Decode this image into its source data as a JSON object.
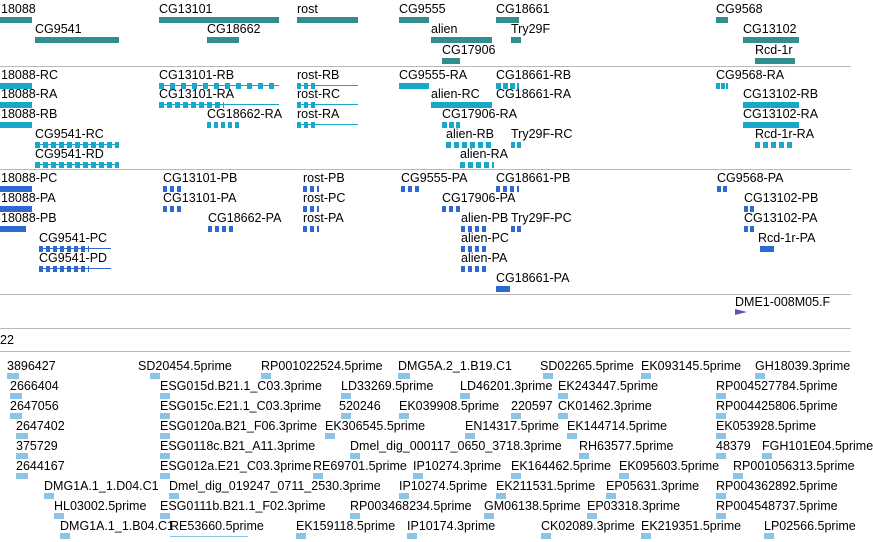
{
  "colors": {
    "gene": "#2f8f8f",
    "transcript": "#17a7c8",
    "protein": "#2e69d3",
    "est": "#6e4fb7",
    "read": "#8cc4e6"
  },
  "tracks": {
    "genes": {
      "labels": [
        "18088",
        "CG13101",
        "rost",
        "CG9555",
        "CG18661",
        "CG9568",
        "CG9541",
        "CG18662",
        "alien",
        "Try29F",
        "CG13102",
        "CG17906",
        "Rcd-1r"
      ]
    },
    "transcripts": {
      "labels": [
        "18088-RC",
        "CG13101-RB",
        "rost-RB",
        "CG9555-RA",
        "CG18661-RB",
        "CG9568-RA",
        "18088-RA",
        "CG13101-RA",
        "rost-RC",
        "alien-RC",
        "CG18661-RA",
        "CG13102-RB",
        "18088-RB",
        "CG18662-RA",
        "rost-RA",
        "CG17906-RA",
        "CG13102-RA",
        "CG9541-RC",
        "alien-RB",
        "Try29F-RC",
        "Rcd-1r-RA",
        "CG9541-RD",
        "alien-RA"
      ]
    },
    "proteins": {
      "labels": [
        "18088-PC",
        "CG13101-PB",
        "rost-PB",
        "CG9555-PA",
        "CG18661-PB",
        "CG9568-PA",
        "18088-PA",
        "CG13101-PA",
        "rost-PC",
        "CG17906-PA",
        "CG13102-PB",
        "18088-PB",
        "CG18662-PA",
        "rost-PA",
        "alien-PB",
        "Try29F-PC",
        "CG13102-PA",
        "CG9541-PC",
        "alien-PC",
        "Rcd-1r-PA",
        "CG9541-PD",
        "alien-PA",
        "CG18661-PA"
      ]
    },
    "est": {
      "labels": [
        "DME1-008M05.F"
      ]
    },
    "axis": {
      "label": "22"
    },
    "reads": {
      "labels": [
        "3896427",
        "SD20454.5prime",
        "RP001022524.5prime",
        "DMG5A.2_1.B19.C1",
        "SD02265.5prime",
        "EK093145.5prime",
        "GH18039.3prime",
        "2666404",
        "ESG015d.B21.1_C03.3prime",
        "LD33269.5prime",
        "LD46201.3prime",
        "EK243447.5prime",
        "RP004527784.5prime",
        "2647056",
        "ESG015c.E21.1_C03.3prime",
        "520246",
        "EK039908.5prime",
        "220597",
        "CK01462.3prime",
        "RP004425806.5prime",
        "2647402",
        "ESG0120a.B21_F06.3prime",
        "EK306545.5prime",
        "EN14317.5prime",
        "EK144714.5prime",
        "EK053928.5prime",
        "375729",
        "ESG0118c.B21_A11.3prime",
        "Dmel_dig_000117_0650_3718.3prime",
        "RH63577.5prime",
        "48379",
        "FGH101E04.5prime",
        "2644167",
        "ESG012a.E21_C03.3prime",
        "RE69701.5prime",
        "IP10274.3prime",
        "EK164462.5prime",
        "EK095603.5prime",
        "RP001056313.5prime",
        "DMG1A.1_1.D04.C1",
        "Dmel_dig_019247_0711_2530.3prime",
        "IP10274.5prime",
        "EK211531.5prime",
        "EP05631.3prime",
        "RP004362892.5prime",
        "HL03002.5prime",
        "ESG0111b.B21.1_F02.3prime",
        "RP003468234.5prime",
        "GM06138.5prime",
        "EP03318.3prime",
        "RP004548737.5prime",
        "DMG1A.1_1.B04.C1",
        "RE53660.5prime",
        "EK159118.5prime",
        "IP10174.3prime",
        "CK02089.3prime",
        "EK219351.5prime",
        "LP02566.5prime"
      ]
    }
  }
}
